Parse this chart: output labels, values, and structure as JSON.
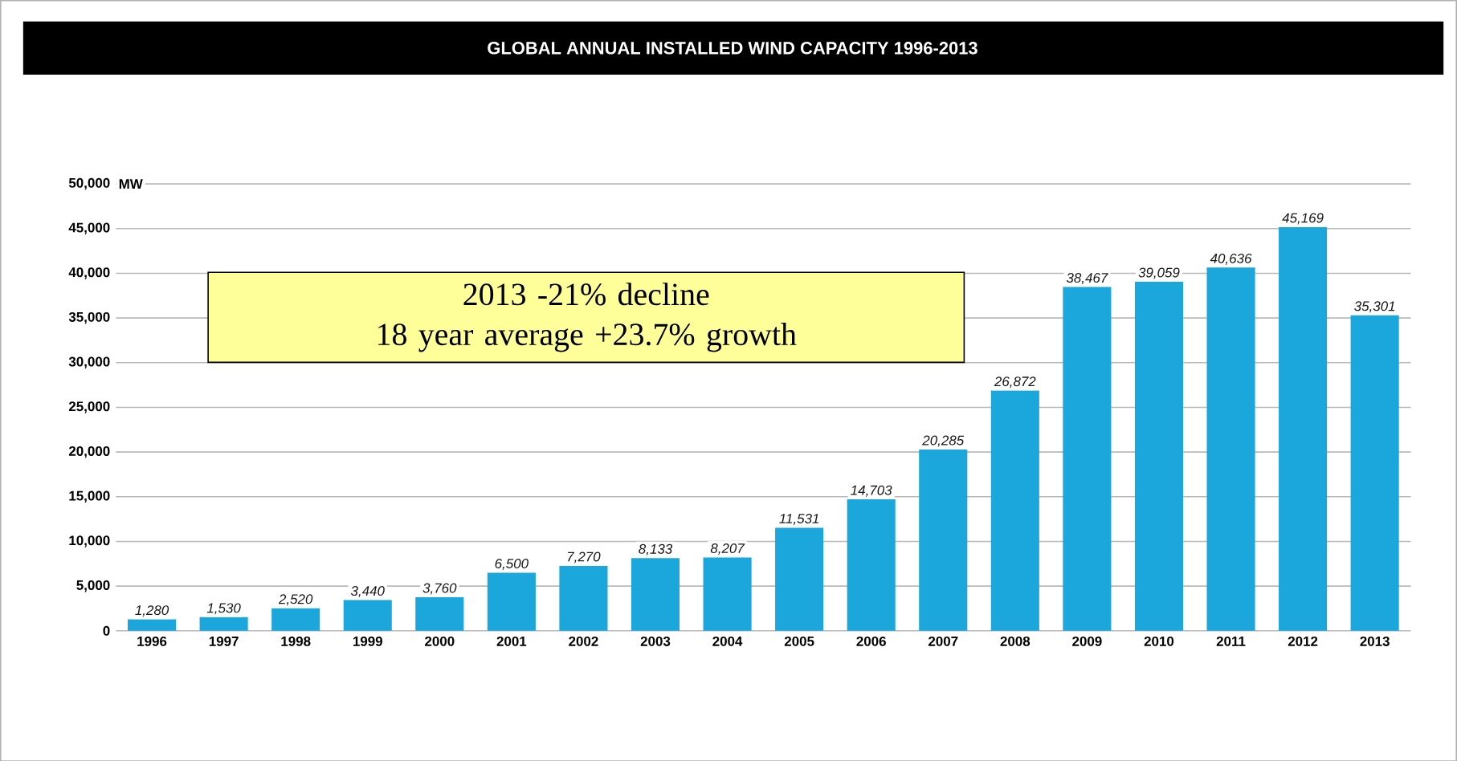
{
  "chart_data": {
    "type": "bar",
    "title": "GLOBAL ANNUAL INSTALLED WIND CAPACITY 1996-2013",
    "ylabel": "MW",
    "categories": [
      "1996",
      "1997",
      "1998",
      "1999",
      "2000",
      "2001",
      "2002",
      "2003",
      "2004",
      "2005",
      "2006",
      "2007",
      "2008",
      "2009",
      "2010",
      "2011",
      "2012",
      "2013"
    ],
    "values": [
      1280,
      1530,
      2520,
      3440,
      3760,
      6500,
      7270,
      8133,
      8207,
      11531,
      14703,
      20285,
      26872,
      38467,
      39059,
      40636,
      45169,
      35301
    ],
    "value_labels": [
      "1,280",
      "1,530",
      "2,520",
      "3,440",
      "3,760",
      "6,500",
      "7,270",
      "8,133",
      "8,207",
      "11,531",
      "14,703",
      "20,285",
      "26,872",
      "38,467",
      "39,059",
      "40,636",
      "45,169",
      "35,301"
    ],
    "color": "#1ba6dc",
    "ylim": [
      0,
      50000
    ],
    "yticks": [
      {
        "value": 0,
        "label": "0"
      },
      {
        "value": 5000,
        "label": "5,000"
      },
      {
        "value": 10000,
        "label": "10,000"
      },
      {
        "value": 15000,
        "label": "15,000"
      },
      {
        "value": 20000,
        "label": "20,000"
      },
      {
        "value": 25000,
        "label": "25,000"
      },
      {
        "value": 30000,
        "label": "30,000"
      },
      {
        "value": 35000,
        "label": "35,000"
      },
      {
        "value": 40000,
        "label": "40,000"
      },
      {
        "value": 45000,
        "label": "45,000"
      },
      {
        "value": 50000,
        "label": "50,000"
      }
    ],
    "grid": "y",
    "annotations": [
      "2013   -21% decline",
      "18 year average +23.7% growth"
    ]
  }
}
